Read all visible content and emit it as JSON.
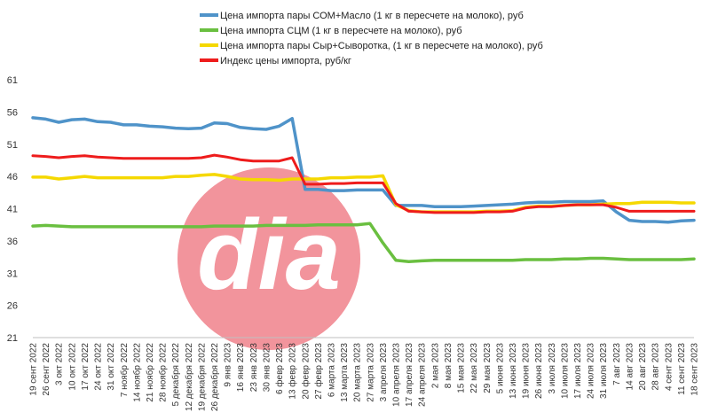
{
  "chart_data": {
    "type": "line",
    "title": "",
    "xlabel": "",
    "ylabel": "",
    "ylim": [
      21,
      61
    ],
    "yticks": [
      21,
      26,
      31,
      36,
      41,
      46,
      51,
      56,
      61
    ],
    "grid": false,
    "legend_position": "top",
    "x": [
      "19 сент 2022",
      "26 сент 2022",
      "3 окт 2022",
      "10 окт 2022",
      "17 окт 2022",
      "24 окт 2022",
      "31 окт 2022",
      "7 ноябр 2022",
      "14 ноябр 2022",
      "21 ноябр 2022",
      "28 ноябр 2022",
      "5 декабря 2022",
      "12 декабря 2022",
      "19 декабря 2022",
      "26 декабря 2022",
      "9 янв 2023",
      "16 янв 2023",
      "23 янв 2023",
      "30 янв 2023",
      "6 февр 2023",
      "13 февр 2023",
      "20 февр 2023",
      "27 февр 2023",
      "6 марта 2023",
      "13 марта 2023",
      "20 марта 2023",
      "27 марта 2023",
      "3 апреля 2023",
      "10 апреля 2023",
      "17 апреля 2023",
      "24 апреля 2023",
      "2 мая 2023",
      "8 мая 2023",
      "15 мая 2023",
      "22 мая 2023",
      "29 мая 2023",
      "5 июня 2023",
      "13 июня 2023",
      "19 июня 2023",
      "26 июня 2023",
      "3 июля 2023",
      "10 июля 2023",
      "17 июля 2023",
      "24 июля 2023",
      "31 июля 2023",
      "7 авг 2023",
      "14 авг 2023",
      "20 авг 2023",
      "28 авг 2023",
      "4 сент 2023",
      "11 сент 2023",
      "18 сент 2023"
    ],
    "series": [
      {
        "name": "Цена импорта пары СОМ+Масло  (1 кг в пересчете на молоко), руб",
        "color": "#4f93c9",
        "values": [
          55.1,
          54.9,
          54.4,
          54.8,
          54.9,
          54.5,
          54.4,
          54.0,
          54.0,
          53.8,
          53.7,
          53.5,
          53.4,
          53.5,
          54.3,
          54.2,
          53.6,
          53.4,
          53.3,
          53.8,
          55.0,
          44.0,
          44.0,
          43.8,
          43.8,
          43.9,
          43.9,
          43.9,
          41.5,
          41.5,
          41.5,
          41.3,
          41.3,
          41.3,
          41.4,
          41.5,
          41.6,
          41.7,
          41.9,
          42.0,
          42.0,
          42.1,
          42.1,
          42.1,
          42.2,
          40.5,
          39.2,
          39.0,
          39.0,
          38.9,
          39.1,
          39.2
        ]
      },
      {
        "name": "Цена импорта СЦМ (1 кг в пересчете на молоко), руб",
        "color": "#6abf40",
        "values": [
          38.3,
          38.4,
          38.3,
          38.2,
          38.2,
          38.2,
          38.2,
          38.2,
          38.2,
          38.2,
          38.2,
          38.2,
          38.2,
          38.2,
          38.3,
          38.3,
          38.3,
          38.3,
          38.4,
          38.4,
          38.4,
          38.4,
          38.5,
          38.5,
          38.5,
          38.5,
          38.7,
          35.7,
          33.0,
          32.8,
          32.9,
          33.0,
          33.0,
          33.0,
          33.0,
          33.0,
          33.0,
          33.0,
          33.1,
          33.1,
          33.1,
          33.2,
          33.2,
          33.3,
          33.3,
          33.2,
          33.1,
          33.1,
          33.1,
          33.1,
          33.1,
          33.2
        ]
      },
      {
        "name": "Цена импорта пары Сыр+Сыворотка, (1 кг в пересчете на молоко), руб",
        "color": "#f5d800",
        "values": [
          45.9,
          45.9,
          45.6,
          45.8,
          46.0,
          45.8,
          45.8,
          45.8,
          45.8,
          45.8,
          45.8,
          46.0,
          46.0,
          46.2,
          46.3,
          46.0,
          45.6,
          45.5,
          45.5,
          45.4,
          45.6,
          45.6,
          45.6,
          45.8,
          45.8,
          45.9,
          45.9,
          46.1,
          41.6,
          40.7,
          40.5,
          40.5,
          40.5,
          40.5,
          40.5,
          40.6,
          40.6,
          40.7,
          41.2,
          41.4,
          41.4,
          41.5,
          41.6,
          41.6,
          41.7,
          41.8,
          41.8,
          42.0,
          42.0,
          42.0,
          41.9,
          41.9
        ]
      },
      {
        "name": "Индекс цены импорта, руб/кг",
        "color": "#ee1c1c",
        "values": [
          49.2,
          49.1,
          48.9,
          49.1,
          49.2,
          49.0,
          48.9,
          48.8,
          48.8,
          48.8,
          48.8,
          48.8,
          48.8,
          48.9,
          49.3,
          49.0,
          48.6,
          48.4,
          48.4,
          48.4,
          48.9,
          44.8,
          44.8,
          44.9,
          44.9,
          45.0,
          45.0,
          45.0,
          41.8,
          40.6,
          40.5,
          40.4,
          40.4,
          40.4,
          40.4,
          40.5,
          40.5,
          40.6,
          41.1,
          41.3,
          41.3,
          41.5,
          41.6,
          41.6,
          41.6,
          41.2,
          40.6,
          40.6,
          40.6,
          40.6,
          40.6,
          40.6
        ]
      }
    ]
  },
  "watermark": {
    "text": "dia",
    "color": "#f2949c"
  }
}
